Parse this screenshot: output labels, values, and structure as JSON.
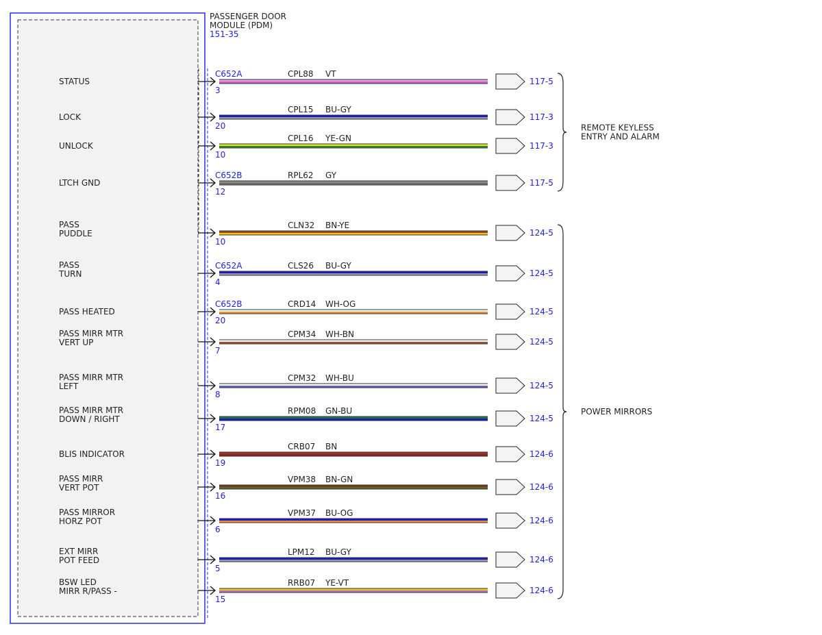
{
  "module": {
    "title_line1": "PASSENGER DOOR",
    "title_line2": "MODULE (PDM)",
    "ref": "151-35"
  },
  "colors": {
    "module_border": "#2a2aee",
    "module_fill": "#f2f2f2",
    "ref_text": "#2020e0"
  },
  "circuits": [
    {
      "label": [
        "STATUS"
      ],
      "connector": "C652A",
      "pin": "3",
      "circuit": "CPL88",
      "wire_color": "VT",
      "stripes": [
        "#e6a0e6",
        "#c860c8"
      ],
      "ref": "117-5"
    },
    {
      "label": [
        "LOCK"
      ],
      "connector": "",
      "pin": "20",
      "circuit": "CPL15",
      "wire_color": "BU-GY",
      "stripes": [
        "#1a1acc",
        "#9a9a9a"
      ],
      "ref": "117-3"
    },
    {
      "label": [
        "UNLOCK"
      ],
      "connector": "",
      "pin": "10",
      "circuit": "CPL16",
      "wire_color": "YE-GN",
      "stripes": [
        "#e6e020",
        "#2e8a2e"
      ],
      "ref": "117-3"
    },
    {
      "label": [
        "LTCH GND"
      ],
      "connector": "C652B",
      "pin": "12",
      "circuit": "RPL62",
      "wire_color": "GY",
      "stripes": [
        "#8a8a8a",
        "#6e6e6e"
      ],
      "ref": "117-5"
    },
    {
      "label": [
        "PASS",
        "PUDDLE"
      ],
      "connector": "",
      "pin": "10",
      "circuit": "CLN32",
      "wire_color": "BN-YE",
      "stripes": [
        "#9a4a10",
        "#f0c020"
      ],
      "ref": "124-5"
    },
    {
      "label": [
        "PASS",
        "TURN"
      ],
      "connector": "C652A",
      "pin": "4",
      "circuit": "CLS26",
      "wire_color": "BU-GY",
      "stripes": [
        "#1a1acc",
        "#9a9a9a"
      ],
      "ref": "124-5"
    },
    {
      "label": [
        "PASS HEATED"
      ],
      "connector": "C652B",
      "pin": "20",
      "circuit": "CRD14",
      "wire_color": "WH-OG",
      "stripes": [
        "#ffffff",
        "#f09030"
      ],
      "ref": "124-5"
    },
    {
      "label": [
        "PASS MIRR MTR",
        "VERT UP"
      ],
      "connector": "",
      "pin": "7",
      "circuit": "CPM34",
      "wire_color": "WH-BN",
      "stripes": [
        "#ffffff",
        "#a05030"
      ],
      "ref": "124-5"
    },
    {
      "label": [
        "PASS MIRR MTR",
        "LEFT"
      ],
      "connector": "",
      "pin": "8",
      "circuit": "CPM32",
      "wire_color": "WH-BU",
      "stripes": [
        "#ffffff",
        "#6060d0"
      ],
      "ref": "124-5"
    },
    {
      "label": [
        "PASS MIRR MTR",
        "DOWN / RIGHT"
      ],
      "connector": "",
      "pin": "17",
      "circuit": "RPM08",
      "wire_color": "GN-BU",
      "stripes": [
        "#1e7a3a",
        "#1a1acc"
      ],
      "ref": "124-5"
    },
    {
      "label": [
        "BLIS INDICATOR"
      ],
      "connector": "",
      "pin": "19",
      "circuit": "CRB07",
      "wire_color": "BN",
      "stripes": [
        "#a03028",
        "#8a2820"
      ],
      "ref": "124-6"
    },
    {
      "label": [
        "PASS MIRR",
        "VERT POT"
      ],
      "connector": "",
      "pin": "16",
      "circuit": "VPM38",
      "wire_color": "BN-GN",
      "stripes": [
        "#7a3a20",
        "#5a6a30"
      ],
      "ref": "124-6"
    },
    {
      "label": [
        "PASS MIRROR",
        "HORZ POT"
      ],
      "connector": "",
      "pin": "6",
      "circuit": "VPM37",
      "wire_color": "BU-OG",
      "stripes": [
        "#1a1acc",
        "#f09030"
      ],
      "ref": "124-6"
    },
    {
      "label": [
        "EXT MIRR",
        "POT FEED"
      ],
      "connector": "",
      "pin": "5",
      "circuit": "LPM12",
      "wire_color": "BU-GY",
      "stripes": [
        "#1a1acc",
        "#9a9a9a"
      ],
      "ref": "124-6"
    },
    {
      "label": [
        "BSW LED",
        "MIRR R/PASS -"
      ],
      "connector": "",
      "pin": "15",
      "circuit": "RRB07",
      "wire_color": "YE-VT",
      "stripes": [
        "#e6c820",
        "#b070c0"
      ],
      "ref": "124-6"
    }
  ],
  "groups": [
    {
      "label": [
        "REMOTE KEYLESS",
        "ENTRY AND ALARM"
      ],
      "first": 0,
      "last": 3
    },
    {
      "label": [
        "POWER MIRRORS"
      ],
      "first": 4,
      "last": 14
    }
  ]
}
